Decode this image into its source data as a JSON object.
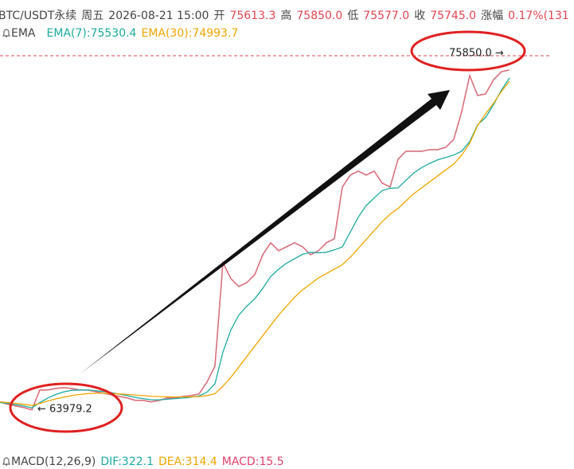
{
  "header": {
    "symbol": "BTC/USDT永续",
    "weekday": "周五",
    "datetime": "2026-08-21 15:00",
    "open_label": "开",
    "open": "75613.3",
    "high_label": "高",
    "high": "75850.0",
    "low_label": "低",
    "low": "75577.0",
    "close_label": "收",
    "close": "75745.0",
    "change_label": "涨幅",
    "change": "0.17%(131"
  },
  "indicator": {
    "name": "EMA",
    "ema7": "EMA(7):75530.4",
    "ema30": "EMA(30):74993.7"
  },
  "macd": {
    "name": "MACD(12,26,9)",
    "dif": "DIF:322.1",
    "dea": "DEA:314.4",
    "macd": "MACD:15.5"
  },
  "chart_data": {
    "type": "line",
    "ylim": [
      62550,
      76925
    ],
    "series": [
      {
        "color": "#d9707c",
        "values": [
          64167,
          64087,
          64033,
          63979,
          63899,
          64570,
          64570,
          64624,
          64651,
          64624,
          64570,
          64570,
          64516,
          64462,
          64409,
          64355,
          64301,
          64221,
          64221,
          64167,
          64221,
          64301,
          64301,
          64355,
          64382,
          64436,
          64839,
          65376,
          68868,
          68330,
          68062,
          68196,
          68465,
          69136,
          69539,
          69270,
          69405,
          69539,
          69405,
          69136,
          69270,
          69539,
          69673,
          71419,
          71822,
          71956,
          71822,
          71956,
          71554,
          71419,
          72359,
          72628,
          72628,
          72628,
          72682,
          72682,
          72762,
          73031,
          73971,
          75180,
          74508,
          74562,
          75045,
          75314,
          75368
        ]
      },
      {
        "color": "#1aa9a0",
        "values": [
          64150,
          64120,
          64080,
          64030,
          63970,
          64150,
          64300,
          64420,
          64510,
          64560,
          64570,
          64570,
          64550,
          64520,
          64480,
          64430,
          64380,
          64320,
          64280,
          64240,
          64240,
          64260,
          64280,
          64300,
          64330,
          64370,
          64500,
          64780,
          65850,
          66600,
          67100,
          67400,
          67650,
          68000,
          68400,
          68650,
          68850,
          69000,
          69150,
          69220,
          69200,
          69220,
          69300,
          69400,
          69900,
          70400,
          70800,
          71050,
          71300,
          71380,
          71390,
          71650,
          71900,
          72080,
          72220,
          72340,
          72420,
          72500,
          72630,
          72960,
          73520,
          73770,
          74200,
          74700,
          75100
        ]
      },
      {
        "color": "#f0a500",
        "values": [
          64170,
          64150,
          64120,
          64090,
          64050,
          64120,
          64200,
          64270,
          64330,
          64380,
          64420,
          64450,
          64460,
          64460,
          64450,
          64440,
          64420,
          64400,
          64380,
          64360,
          64350,
          64340,
          64340,
          64340,
          64340,
          64350,
          64380,
          64450,
          64700,
          65000,
          65350,
          65700,
          66050,
          66400,
          66750,
          67100,
          67400,
          67700,
          67950,
          68150,
          68350,
          68500,
          68650,
          68800,
          69050,
          69350,
          69650,
          69950,
          70250,
          70500,
          70700,
          70950,
          71200,
          71400,
          71600,
          71800,
          72000,
          72200,
          72500,
          72900,
          73500,
          73900,
          74250,
          74650,
          74990
        ]
      }
    ],
    "max_label": {
      "value": 75850.0,
      "label": "75850.0 →"
    },
    "min_label": {
      "value": 63979.2,
      "label": "← 63979.2"
    }
  }
}
